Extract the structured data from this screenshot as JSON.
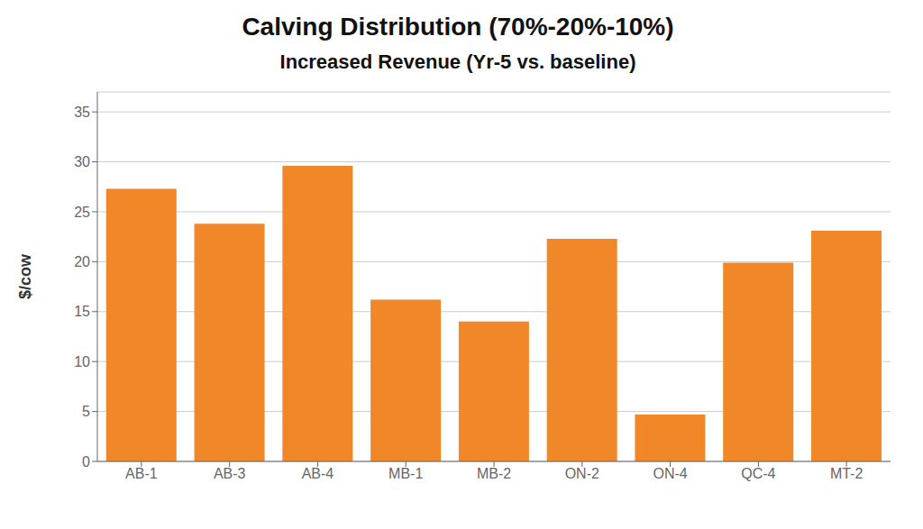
{
  "chart_data": {
    "type": "bar",
    "title": "Calving Distribution (70%-20%-10%)",
    "subtitle": "Increased Revenue (Yr-5 vs. baseline)",
    "categories": [
      "AB-1",
      "AB-3",
      "AB-4",
      "MB-1",
      "MB-2",
      "ON-2",
      "ON-4",
      "QC-4",
      "MT-2"
    ],
    "values": [
      27.3,
      23.8,
      29.6,
      16.2,
      14.0,
      22.3,
      4.7,
      19.9,
      23.1
    ],
    "color": "#F0882A",
    "ylabel": "$/cow",
    "ylim": [
      0,
      37
    ],
    "yticks": [
      0,
      5,
      10,
      15,
      20,
      25,
      30,
      35
    ],
    "grid": true
  }
}
